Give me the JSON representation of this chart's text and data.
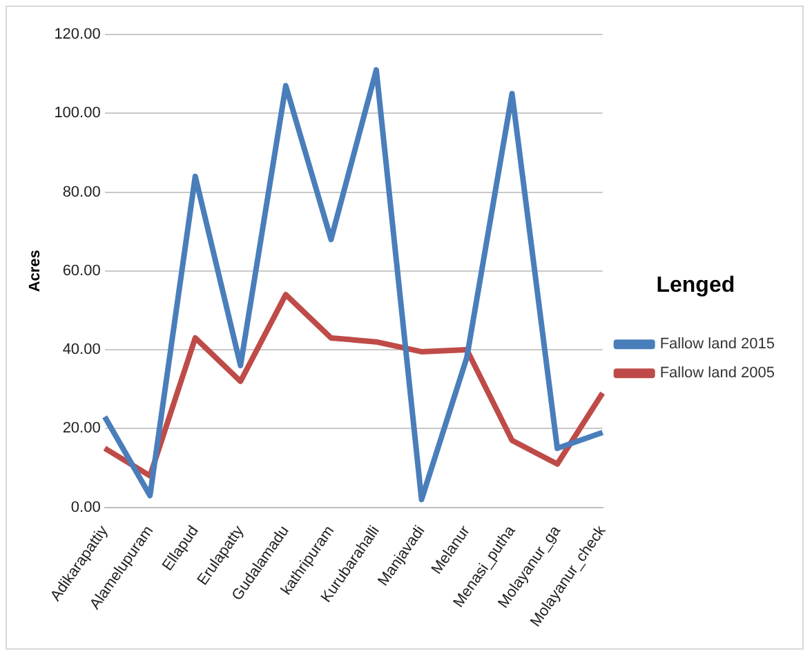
{
  "chart_data": {
    "type": "line",
    "ylabel": "Acres",
    "legend_title": "Lenged",
    "legend": "right",
    "categories": [
      "Adikarapattiy",
      "Alamelupuram",
      "Ellapud",
      "Erulapatty",
      "Gudalamadu",
      "kathripuram",
      "Kurubarahalli",
      "Manjavadi",
      "Melanur",
      "Menasi_putha",
      "Molayanur_ga",
      "Molayanur_check"
    ],
    "series": [
      {
        "name": "Fallow land 2015",
        "color": "#4a7ebb",
        "values": [
          23,
          3,
          84,
          36,
          107,
          68,
          111,
          2,
          38,
          105,
          15,
          19
        ]
      },
      {
        "name": "Fallow land 2005",
        "color": "#be4b48",
        "values": [
          15,
          8,
          43,
          32,
          54,
          43,
          42,
          39.5,
          40,
          17,
          11,
          29
        ]
      }
    ],
    "ylim": [
      0,
      120
    ],
    "yticks": [
      {
        "value": 0,
        "label": "0.00"
      },
      {
        "value": 20,
        "label": "20.00"
      },
      {
        "value": 40,
        "label": "40.00"
      },
      {
        "value": 60,
        "label": "60.00"
      },
      {
        "value": 80,
        "label": "80.00"
      },
      {
        "value": 100,
        "label": "100.00"
      },
      {
        "value": 120,
        "label": "120.00"
      }
    ],
    "grid": "y",
    "marker": "none",
    "line_style": "solid"
  }
}
